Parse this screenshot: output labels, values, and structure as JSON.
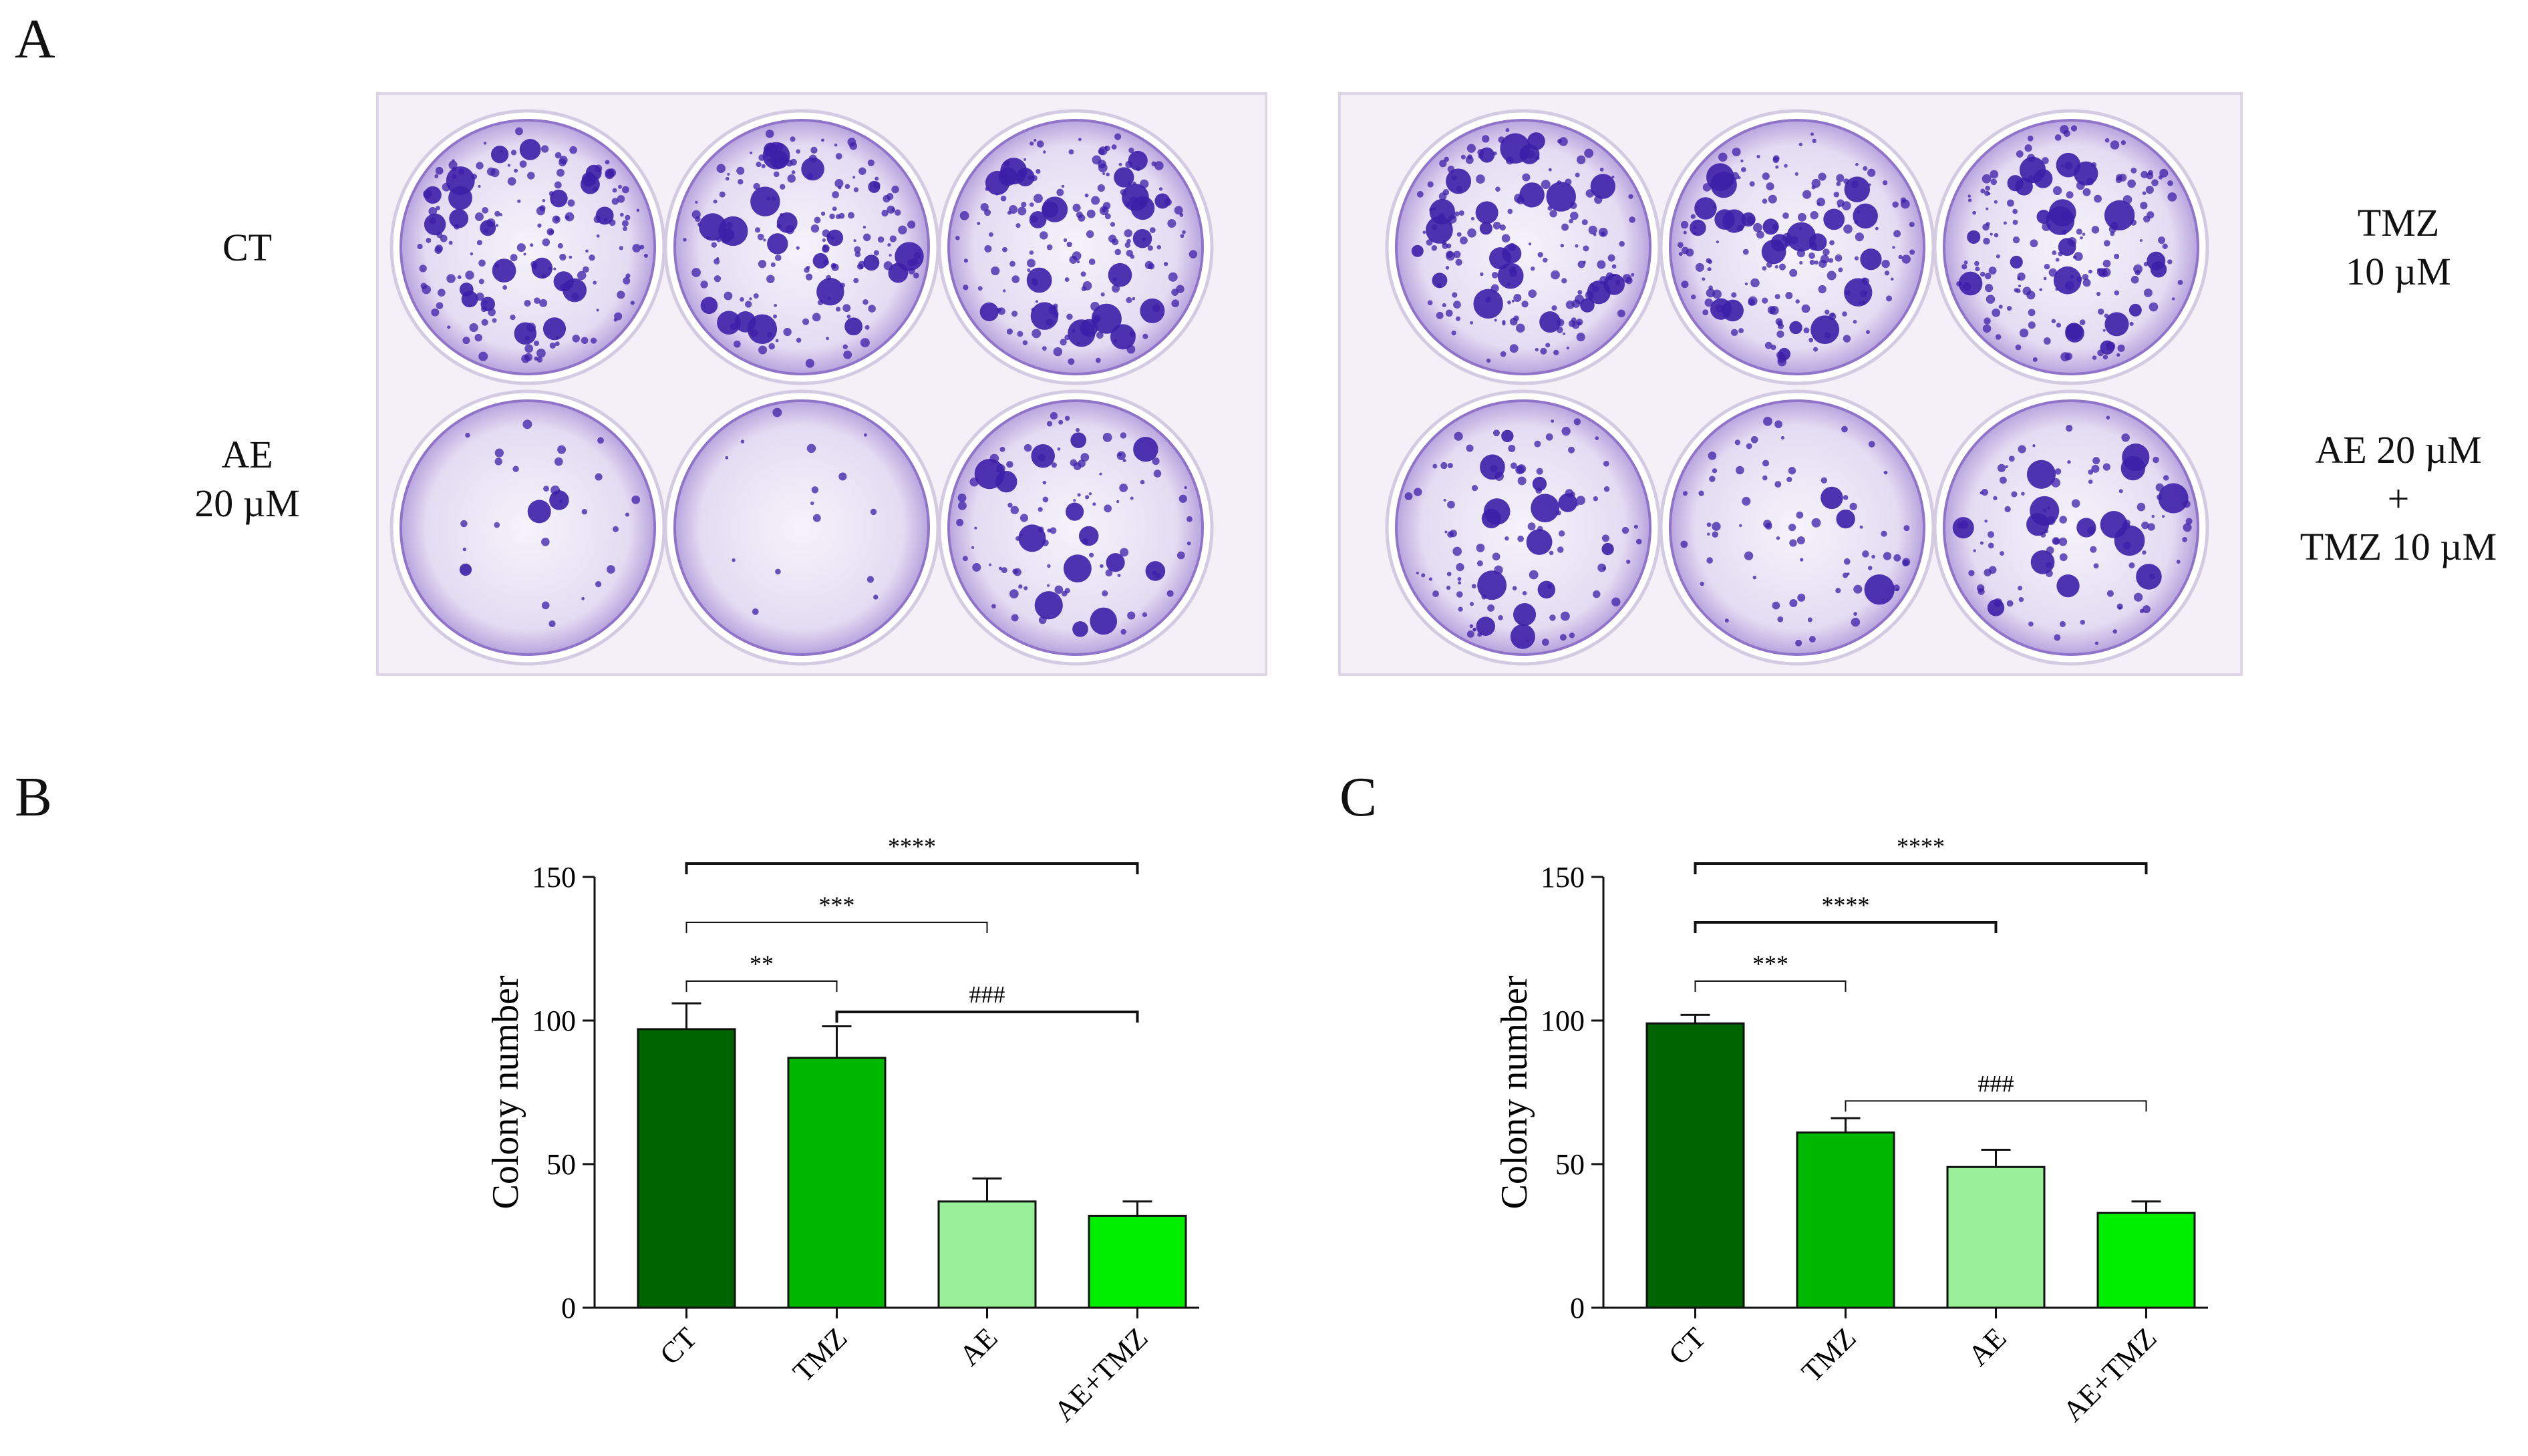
{
  "panels": {
    "a": {
      "letter": "A",
      "labels": {
        "ct": "CT",
        "ae_line1": "AE",
        "ae_line2": "20 µM",
        "tmz_line1": "TMZ",
        "tmz_line2": "10 µM",
        "combo_line1": "AE 20 µM",
        "combo_line2": "+",
        "combo_line3": "TMZ 10 µM"
      },
      "colors": {
        "colony": "#3c1fa8",
        "stain_light": "#d9cdee",
        "plate": "#f1eef6"
      }
    },
    "b": {
      "letter": "B"
    },
    "c": {
      "letter": "C"
    }
  },
  "chart_data": [
    {
      "type": "bar",
      "panel": "B",
      "categories": [
        "CT",
        "TMZ",
        "AE",
        "AE+TMZ"
      ],
      "values": [
        97,
        87,
        37,
        32
      ],
      "errors": [
        9,
        11,
        8,
        5
      ],
      "colors": [
        "#006400",
        "#00b800",
        "#99f099",
        "#00ee00"
      ],
      "ylabel": "Colony number",
      "ylim": [
        0,
        150
      ],
      "yticks": [
        "0",
        "50",
        "100",
        "150"
      ],
      "brackets": [
        {
          "from": 0,
          "to": 3,
          "label": "****"
        },
        {
          "from": 0,
          "to": 2,
          "label": "***"
        },
        {
          "from": 0,
          "to": 1,
          "label": "**"
        },
        {
          "from": 1,
          "to": 3,
          "label": "###"
        }
      ]
    },
    {
      "type": "bar",
      "panel": "C",
      "categories": [
        "CT",
        "TMZ",
        "AE",
        "AE+TMZ"
      ],
      "values": [
        99,
        61,
        49,
        33
      ],
      "errors": [
        3,
        5,
        6,
        4
      ],
      "colors": [
        "#006400",
        "#00b800",
        "#99f099",
        "#00ee00"
      ],
      "ylabel": "Colony number",
      "ylim": [
        0,
        150
      ],
      "yticks": [
        "0",
        "50",
        "100",
        "150"
      ],
      "brackets": [
        {
          "from": 0,
          "to": 3,
          "label": "****"
        },
        {
          "from": 0,
          "to": 2,
          "label": "****"
        },
        {
          "from": 0,
          "to": 1,
          "label": "***"
        },
        {
          "from": 1,
          "to": 3,
          "label": "###"
        }
      ]
    }
  ]
}
